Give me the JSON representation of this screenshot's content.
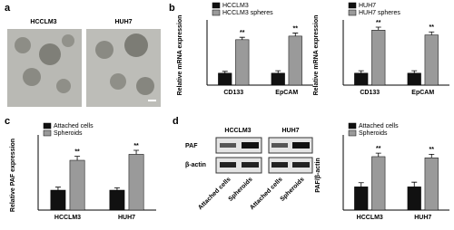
{
  "panel_labels": [
    "a",
    "b",
    "c",
    "d"
  ],
  "images": {
    "labels": [
      "HCCLM3",
      "HUH7"
    ]
  },
  "blot": {
    "groups": [
      "HCCLM3",
      "HUH7"
    ],
    "rows": [
      "PAF",
      "β-actin"
    ],
    "lanes": [
      "Attached cells",
      "Spheroids",
      "Attached cells",
      "Spheroids"
    ]
  },
  "chart_data": [
    {
      "type": "bar",
      "y_label": "Relative mRNA expression",
      "categories": [
        "CD133",
        "EpCAM"
      ],
      "ylim": [
        0,
        5
      ],
      "series": [
        {
          "name": "HCCLM3",
          "color": "#111111",
          "values": [
            1,
            1
          ],
          "errors": [
            0.15,
            0.2
          ]
        },
        {
          "name": "HCCLM3 spheres",
          "color": "#9a9a9a",
          "values": [
            3.8,
            4.1
          ],
          "errors": [
            0.2,
            0.25
          ],
          "significance": [
            "**",
            "**"
          ]
        }
      ]
    },
    {
      "type": "bar",
      "y_label": "Relative mRNA expression",
      "categories": [
        "CD133",
        "EpCAM"
      ],
      "ylim": [
        0,
        5
      ],
      "series": [
        {
          "name": "HUH7",
          "color": "#111111",
          "values": [
            1,
            1
          ],
          "errors": [
            0.2,
            0.2
          ]
        },
        {
          "name": "HUH7 spheres",
          "color": "#9a9a9a",
          "values": [
            4.6,
            4.2
          ],
          "errors": [
            0.25,
            0.25
          ],
          "significance": [
            "**",
            "**"
          ]
        }
      ]
    },
    {
      "type": "bar",
      "y_label": "Relative PAF expression",
      "categories": [
        "HCCLM3",
        "HUH7"
      ],
      "ylim": [
        0,
        3.5
      ],
      "series": [
        {
          "name": "Attached cells",
          "color": "#111111",
          "values": [
            1,
            1
          ],
          "errors": [
            0.15,
            0.12
          ]
        },
        {
          "name": "Spheroids",
          "color": "#9a9a9a",
          "values": [
            2.5,
            2.8
          ],
          "errors": [
            0.2,
            0.2
          ],
          "significance": [
            "**",
            "**"
          ]
        }
      ]
    },
    {
      "type": "bar",
      "y_label": "PAF/β-actin",
      "categories": [
        "HCCLM3",
        "HUH7"
      ],
      "ylim": [
        0,
        3
      ],
      "series": [
        {
          "name": "Attached cells",
          "color": "#111111",
          "values": [
            1,
            1
          ],
          "errors": [
            0.18,
            0.2
          ]
        },
        {
          "name": "Spheroids",
          "color": "#9a9a9a",
          "values": [
            2.3,
            2.25
          ],
          "errors": [
            0.15,
            0.15
          ],
          "significance": [
            "**",
            "**"
          ]
        }
      ]
    }
  ]
}
